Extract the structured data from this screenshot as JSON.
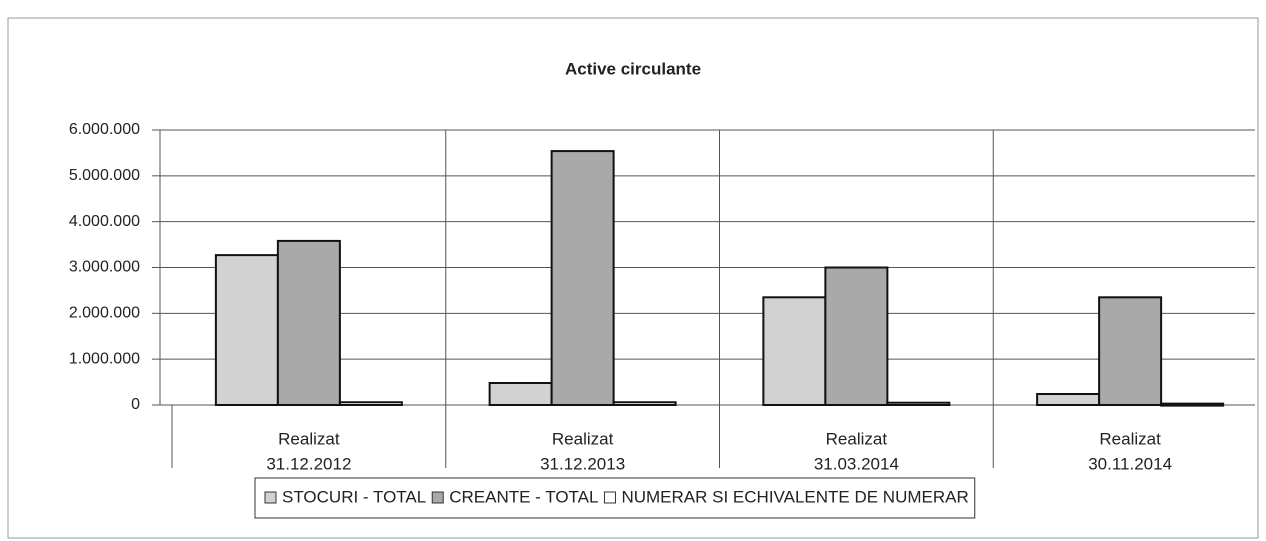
{
  "chart_data": {
    "type": "bar",
    "title": "Active circulante",
    "categories": [
      [
        "Realizat",
        "31.12.2012"
      ],
      [
        "Realizat",
        "31.12.2013"
      ],
      [
        "Realizat",
        "31.03.2014"
      ],
      [
        "Realizat",
        "30.11.2014"
      ]
    ],
    "series": [
      {
        "name": "STOCURI - TOTAL",
        "color": "#d2d2d2",
        "values": [
          3270000,
          480000,
          2350000,
          240000
        ]
      },
      {
        "name": "CREANTE - TOTAL",
        "color": "#a9a9a9",
        "values": [
          3580000,
          5540000,
          3000000,
          2350000
        ]
      },
      {
        "name": "NUMERAR SI ECHIVALENTE DE NUMERAR",
        "color": "#ffffff",
        "values": [
          60000,
          60000,
          50000,
          30000
        ]
      }
    ],
    "ylim": [
      0,
      6000000
    ],
    "yticks": [
      0,
      {
        "value": 1000000,
        "label": "1.000.000"
      },
      {
        "value": 2000000,
        "label": "2.000.000"
      },
      {
        "value": 3000000,
        "label": "3.000.000"
      },
      {
        "value": 4000000,
        "label": "4.000.000"
      },
      {
        "value": 5000000,
        "label": "5.000.000"
      },
      {
        "value": 6000000,
        "label": "6.000.000"
      }
    ],
    "grid": true
  }
}
